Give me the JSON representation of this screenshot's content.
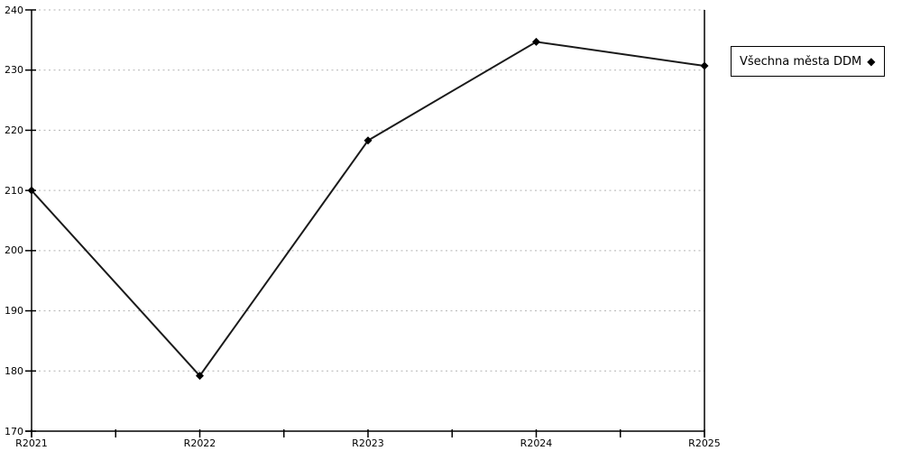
{
  "legend": {
    "label": "Všechna města DDM",
    "marker_glyph": "◆"
  },
  "chart_data": {
    "type": "line",
    "categories": [
      "R2021",
      "R2022",
      "R2023",
      "R2024",
      "R2025"
    ],
    "series": [
      {
        "name": "Všechna města DDM",
        "values": [
          210,
          179.2,
          218.3,
          234.7,
          230.7
        ]
      }
    ],
    "ylim": [
      170,
      240
    ],
    "yticks": [
      170,
      180,
      190,
      200,
      210,
      220,
      230,
      240
    ],
    "grid": "horizontal-dotted",
    "marker": "diamond",
    "legend_position": "right-outside",
    "colors": {
      "line": "#1a1a1a",
      "marker": "#000000",
      "grid": "#b3b3b3",
      "axis": "#000000",
      "text": "#000000",
      "background": "#ffffff"
    }
  }
}
